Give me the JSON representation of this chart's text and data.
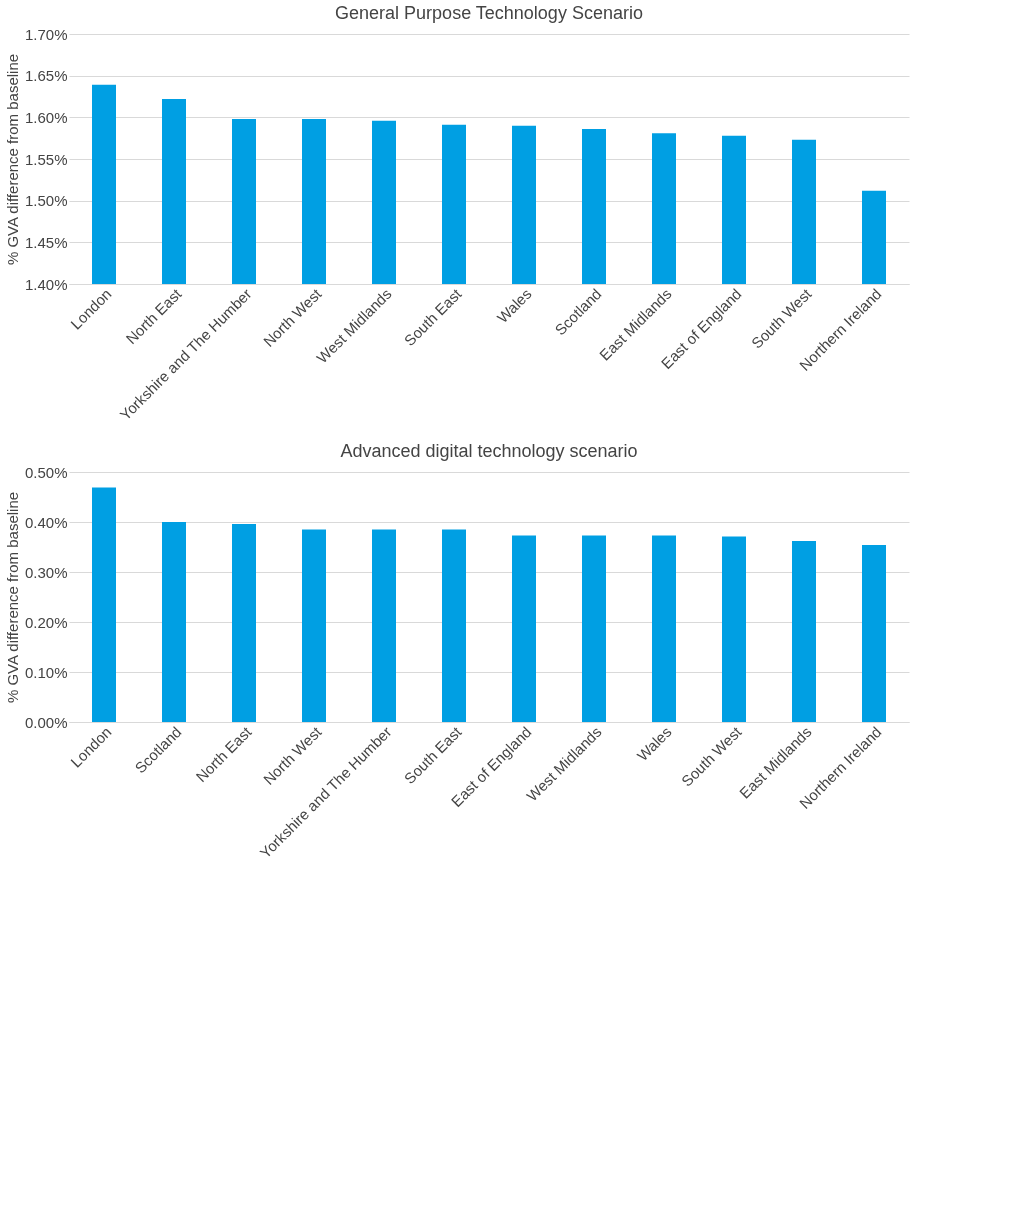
{
  "chart_data": [
    {
      "type": "bar",
      "title": "General Purpose Technology Scenario",
      "ylabel": "% GVA difference from baseline",
      "categories": [
        "London",
        "North East",
        "Yorkshire and The Humber",
        "North West",
        "West Midlands",
        "South East",
        "Wales",
        "Scotland",
        "East Midlands",
        "East of England",
        "South West",
        "Northern Ireland"
      ],
      "values": [
        1.639,
        1.622,
        1.598,
        1.598,
        1.596,
        1.591,
        1.59,
        1.586,
        1.581,
        1.578,
        1.573,
        1.512
      ],
      "color": "#009fe3",
      "ylim": [
        1.4,
        1.7
      ],
      "yticks": [
        {
          "value": 1.4,
          "label": "1.40%"
        },
        {
          "value": 1.45,
          "label": "1.45%"
        },
        {
          "value": 1.5,
          "label": "1.50%"
        },
        {
          "value": 1.55,
          "label": "1.55%"
        },
        {
          "value": 1.6,
          "label": "1.60%"
        },
        {
          "value": 1.65,
          "label": "1.65%"
        },
        {
          "value": 1.7,
          "label": "1.70%"
        }
      ],
      "grid": "y"
    },
    {
      "type": "bar",
      "title": "Advanced digital technology scenario",
      "ylabel": "% GVA difference from baseline",
      "categories": [
        "London",
        "Scotland",
        "North East",
        "North West",
        "Yorkshire and The Humber",
        "South East",
        "East of England",
        "West Midlands",
        "Wales",
        "South West",
        "East Midlands",
        "Northern Ireland"
      ],
      "values": [
        0.469,
        0.4,
        0.396,
        0.385,
        0.385,
        0.385,
        0.373,
        0.373,
        0.373,
        0.371,
        0.362,
        0.354
      ],
      "color": "#009fe3",
      "ylim": [
        0.0,
        0.5
      ],
      "yticks": [
        {
          "value": 0.0,
          "label": "0.00%"
        },
        {
          "value": 0.1,
          "label": "0.10%"
        },
        {
          "value": 0.2,
          "label": "0.20%"
        },
        {
          "value": 0.3,
          "label": "0.30%"
        },
        {
          "value": 0.4,
          "label": "0.40%"
        },
        {
          "value": 0.5,
          "label": "0.50%"
        }
      ],
      "grid": "y"
    }
  ]
}
